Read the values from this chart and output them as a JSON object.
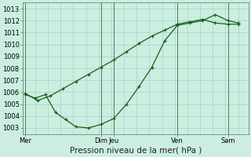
{
  "title": "Pression niveau de la mer( hPa )",
  "background_color": "#cceee0",
  "grid_color": "#99ccbb",
  "line_color": "#1a5e1a",
  "ylim": [
    1002.5,
    1013.5
  ],
  "yticks": [
    1003,
    1004,
    1005,
    1006,
    1007,
    1008,
    1009,
    1010,
    1011,
    1012,
    1013
  ],
  "day_labels": [
    "Mer",
    "Dim",
    "Jeu",
    "Ven",
    "Sam"
  ],
  "day_x_positions": [
    0.0,
    3.0,
    3.5,
    6.0,
    8.0
  ],
  "xlim": [
    -0.1,
    8.8
  ],
  "line1_x": [
    0.0,
    0.4,
    0.8,
    1.2,
    1.6,
    2.0,
    2.5,
    3.0,
    3.5,
    4.0,
    4.5,
    5.0,
    5.5,
    6.0,
    6.5,
    7.0,
    7.5,
    8.0,
    8.4
  ],
  "line1_y": [
    1005.8,
    1005.5,
    1005.8,
    1004.3,
    1003.7,
    1003.1,
    1003.0,
    1003.3,
    1003.8,
    1005.0,
    1006.5,
    1008.1,
    1010.3,
    1011.6,
    1011.8,
    1012.0,
    1012.5,
    1012.0,
    1011.8
  ],
  "line2_x": [
    0.0,
    0.5,
    1.0,
    1.5,
    2.0,
    2.5,
    3.0,
    3.5,
    4.0,
    4.5,
    5.0,
    5.5,
    6.0,
    6.5,
    7.0,
    7.5,
    8.0,
    8.4
  ],
  "line2_y": [
    1005.9,
    1005.3,
    1005.7,
    1006.3,
    1006.9,
    1007.5,
    1008.1,
    1008.7,
    1009.4,
    1010.1,
    1010.7,
    1011.2,
    1011.7,
    1011.9,
    1012.1,
    1011.8,
    1011.7,
    1011.7
  ],
  "vline_positions": [
    0.0,
    3.0,
    3.5,
    6.0,
    8.0
  ],
  "tick_fontsize": 6.0,
  "xlabel_fontsize": 7.5,
  "marker_size": 3.0,
  "line_width": 0.9
}
